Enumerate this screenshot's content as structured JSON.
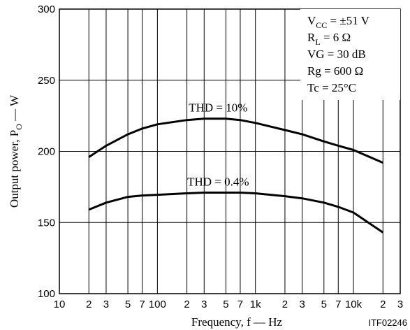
{
  "chart_data": {
    "type": "line",
    "title": "",
    "xlabel": "Frequency, f — Hz",
    "ylabel": {
      "main": "Output power, P",
      "sub": "O",
      "tail": " — W"
    },
    "xscale": "log",
    "xlim": [
      10,
      30000
    ],
    "ylim": [
      100,
      300
    ],
    "grid": true,
    "yticks": [
      100,
      150,
      200,
      250,
      300
    ],
    "y_tick_labels": [
      "100",
      "150",
      "200",
      "250",
      "300"
    ],
    "xticks": [
      10,
      20,
      30,
      50,
      70,
      100,
      200,
      300,
      500,
      700,
      1000,
      2000,
      3000,
      5000,
      7000,
      10000,
      20000,
      30000
    ],
    "x_tick_labels": [
      "10",
      "2",
      "3",
      "5",
      "7",
      "100",
      "2",
      "3",
      "5",
      "7",
      "1k",
      "2",
      "3",
      "5",
      "7",
      "10k",
      "2",
      "3"
    ],
    "series": [
      {
        "name": "THD = 10%",
        "x": [
          20,
          30,
          50,
          70,
          100,
          200,
          300,
          500,
          700,
          1000,
          2000,
          3000,
          5000,
          7000,
          10000,
          20000
        ],
        "y": [
          196,
          204,
          212,
          216,
          219,
          222,
          223,
          223,
          222,
          220,
          215,
          212,
          207,
          204,
          201,
          192
        ]
      },
      {
        "name": "THD = 0.4%",
        "x": [
          20,
          30,
          50,
          70,
          100,
          200,
          300,
          500,
          700,
          1000,
          2000,
          3000,
          5000,
          7000,
          10000,
          20000
        ],
        "y": [
          159,
          164,
          168,
          169,
          169.5,
          170.5,
          171,
          171,
          171,
          170.5,
          168.5,
          167,
          164,
          161,
          157,
          143
        ]
      }
    ],
    "conditions": [
      {
        "main": "V",
        "sub": "CC",
        "tail": " = ±51 V"
      },
      {
        "main": "R",
        "sub": "L",
        "tail": " = 6 Ω"
      },
      {
        "main": "VG = 30 dB",
        "sub": "",
        "tail": ""
      },
      {
        "main": "Rg = 600 Ω",
        "sub": "",
        "tail": ""
      },
      {
        "main": "Tc = 25°C",
        "sub": "",
        "tail": ""
      }
    ],
    "figure_code": "ITF02246"
  }
}
